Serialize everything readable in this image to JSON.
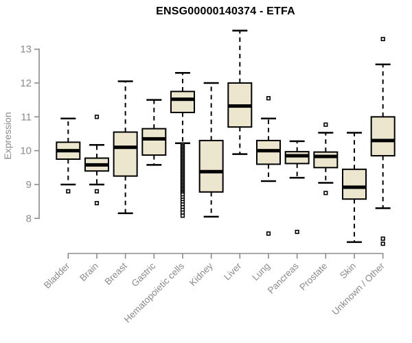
{
  "chart_data": {
    "type": "boxplot",
    "title": "ENSG00000140374 - ETFA",
    "ylabel": "Expression",
    "xlabel": "",
    "ylim": [
      8,
      13
    ],
    "yticks": [
      8,
      9,
      10,
      11,
      12,
      13
    ],
    "grid": false,
    "legend": "none",
    "categories": [
      "Bladder",
      "Brain",
      "Breast",
      "Gastric",
      "Hematopoietic cells",
      "Kidney",
      "Liver",
      "Lung",
      "Pancreas",
      "Prostate",
      "Skin",
      "Unknown / Other"
    ],
    "series": [
      {
        "name": "Bladder",
        "low": 9.0,
        "q1": 9.75,
        "median": 10.0,
        "q3": 10.25,
        "high": 10.95,
        "outliers": [
          8.8
        ]
      },
      {
        "name": "Brain",
        "low": 9.0,
        "q1": 9.4,
        "median": 9.58,
        "q3": 9.78,
        "high": 10.17,
        "outliers": [
          11.0,
          8.8,
          8.45
        ]
      },
      {
        "name": "Breast",
        "low": 8.15,
        "q1": 9.25,
        "median": 10.1,
        "q3": 10.55,
        "high": 12.05,
        "outliers": []
      },
      {
        "name": "Gastric",
        "low": 9.58,
        "q1": 9.87,
        "median": 10.35,
        "q3": 10.65,
        "high": 11.5,
        "outliers": []
      },
      {
        "name": "Hematopoietic cells",
        "low": 10.22,
        "q1": 11.13,
        "median": 11.52,
        "q3": 11.75,
        "high": 12.3,
        "outliers": [
          10.18,
          10.14,
          10.1,
          10.06,
          10.02,
          9.98,
          9.94,
          9.9,
          9.86,
          9.82,
          9.78,
          9.74,
          9.7,
          9.66,
          9.62,
          9.58,
          9.54,
          9.5,
          9.46,
          9.42,
          9.38,
          9.34,
          9.3,
          9.26,
          9.22,
          9.18,
          9.14,
          9.1,
          9.06,
          9.02,
          8.98,
          8.94,
          8.9,
          8.86,
          8.82,
          8.78,
          8.74,
          8.7,
          8.62,
          8.55,
          8.48,
          8.41,
          8.33,
          8.25,
          8.17,
          8.08
        ]
      },
      {
        "name": "Kidney",
        "low": 8.05,
        "q1": 8.78,
        "median": 9.38,
        "q3": 10.3,
        "high": 12.0,
        "outliers": []
      },
      {
        "name": "Liver",
        "low": 9.9,
        "q1": 10.7,
        "median": 11.32,
        "q3": 12.0,
        "high": 13.55,
        "outliers": []
      },
      {
        "name": "Lung",
        "low": 9.1,
        "q1": 9.6,
        "median": 10.0,
        "q3": 10.3,
        "high": 10.95,
        "outliers": [
          11.55,
          7.55
        ]
      },
      {
        "name": "Pancreas",
        "low": 9.2,
        "q1": 9.62,
        "median": 9.85,
        "q3": 9.97,
        "high": 10.28,
        "outliers": [
          7.6
        ]
      },
      {
        "name": "Prostate",
        "low": 9.05,
        "q1": 9.5,
        "median": 9.83,
        "q3": 9.96,
        "high": 10.53,
        "outliers": [
          10.77,
          8.75
        ]
      },
      {
        "name": "Skin",
        "low": 7.3,
        "q1": 8.57,
        "median": 8.92,
        "q3": 9.45,
        "high": 10.53,
        "outliers": []
      },
      {
        "name": "Unknown / Other",
        "low": 8.3,
        "q1": 9.85,
        "median": 10.3,
        "q3": 11.0,
        "high": 12.55,
        "outliers": [
          13.3,
          7.4,
          7.25
        ]
      }
    ]
  },
  "style": {
    "box_fill": "#ECE6CE",
    "box_stroke": "#000000",
    "median_color": "#000000",
    "whisker_color": "#000000",
    "outlier_stroke": "#000000",
    "outlier_fill": "#ffffff",
    "axis_color": "#8a8a8a",
    "tick_label_color": "#8a8a8a",
    "title_color": "#000000"
  }
}
